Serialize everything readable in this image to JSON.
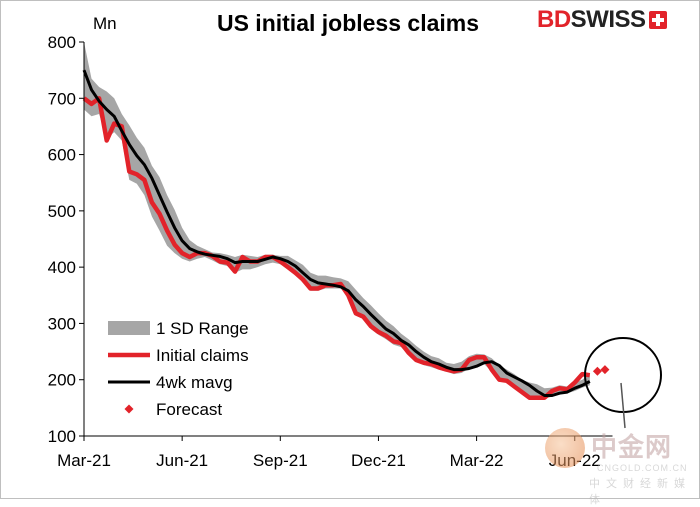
{
  "title": "US initial jobless claims",
  "brand": {
    "part1": "BD",
    "part2": "SWISS"
  },
  "watermark": {
    "big": "中金网",
    "small": "CNGOLD.COM.CN",
    "cn": "中文财经新媒体"
  },
  "colors": {
    "range": "#a6a6a6",
    "claims": "#e2232a",
    "mavg": "#000000",
    "forecast": "#e2232a"
  },
  "chart_data": {
    "type": "line",
    "title": "US initial jobless claims",
    "ylabel": "Mn",
    "ylim": [
      100,
      800
    ],
    "yticks": [
      100,
      200,
      300,
      400,
      500,
      600,
      700,
      800
    ],
    "xtick_labels": [
      "Mar-21",
      "Jun-21",
      "Sep-21",
      "Dec-21",
      "Mar-22",
      "Jun-22"
    ],
    "x_start": "2021-03-06",
    "x_step_weeks": 1,
    "legend": {
      "position": "bottom-left",
      "entries": [
        "1 SD Range",
        "Initial claims",
        "4wk mavg",
        "Forecast"
      ]
    },
    "series": [
      {
        "name": "Initial claims",
        "values": [
          700,
          690,
          700,
          625,
          655,
          650,
          570,
          565,
          555,
          515,
          495,
          465,
          440,
          425,
          418,
          425,
          425,
          420,
          410,
          408,
          392,
          418,
          410,
          410,
          418,
          418,
          410,
          400,
          390,
          378,
          362,
          362,
          368,
          368,
          370,
          350,
          318,
          312,
          295,
          285,
          278,
          268,
          265,
          248,
          235,
          230,
          228,
          222,
          218,
          215,
          218,
          235,
          240,
          240,
          218,
          200,
          198,
          188,
          178,
          168,
          168,
          168,
          180,
          185,
          183,
          195,
          210,
          208
        ]
      },
      {
        "name": "4wk mavg",
        "values": [
          750,
          715,
          695,
          680,
          668,
          642,
          618,
          598,
          582,
          558,
          528,
          498,
          470,
          447,
          433,
          427,
          423,
          421,
          419,
          415,
          408,
          410,
          410,
          410,
          414,
          418,
          415,
          410,
          402,
          390,
          378,
          372,
          370,
          368,
          365,
          358,
          342,
          330,
          316,
          303,
          290,
          282,
          270,
          262,
          250,
          240,
          232,
          228,
          222,
          218,
          218,
          220,
          224,
          230,
          232,
          225,
          212,
          205,
          198,
          190,
          180,
          172,
          172,
          176,
          178,
          185,
          190,
          197
        ]
      },
      {
        "name": "1 SD Range",
        "low": [
          680,
          668,
          672,
          628,
          640,
          625,
          555,
          548,
          528,
          490,
          465,
          438,
          425,
          415,
          410,
          415,
          418,
          412,
          405,
          402,
          390,
          396,
          396,
          400,
          405,
          408,
          405,
          398,
          386,
          374,
          358,
          358,
          362,
          362,
          362,
          348,
          318,
          308,
          290,
          280,
          272,
          262,
          258,
          244,
          232,
          226,
          222,
          218,
          214,
          210,
          212,
          220,
          225,
          228,
          214,
          200,
          194,
          186,
          178,
          170,
          166,
          166,
          170,
          174,
          176,
          180,
          186,
          190
        ],
        "high": [
          800,
          735,
          720,
          712,
          700,
          672,
          652,
          630,
          612,
          580,
          560,
          528,
          502,
          470,
          448,
          438,
          432,
          426,
          425,
          422,
          418,
          422,
          420,
          418,
          422,
          422,
          420,
          420,
          412,
          404,
          390,
          385,
          385,
          382,
          380,
          375,
          360,
          345,
          332,
          318,
          305,
          295,
          282,
          272,
          260,
          250,
          242,
          238,
          230,
          228,
          232,
          242,
          246,
          245,
          238,
          226,
          218,
          210,
          200,
          195,
          192,
          185,
          186,
          190,
          188,
          195,
          200,
          210
        ]
      },
      {
        "name": "Forecast",
        "points": [
          {
            "week": 68,
            "value": 215
          },
          {
            "week": 69,
            "value": 218
          }
        ]
      }
    ]
  }
}
